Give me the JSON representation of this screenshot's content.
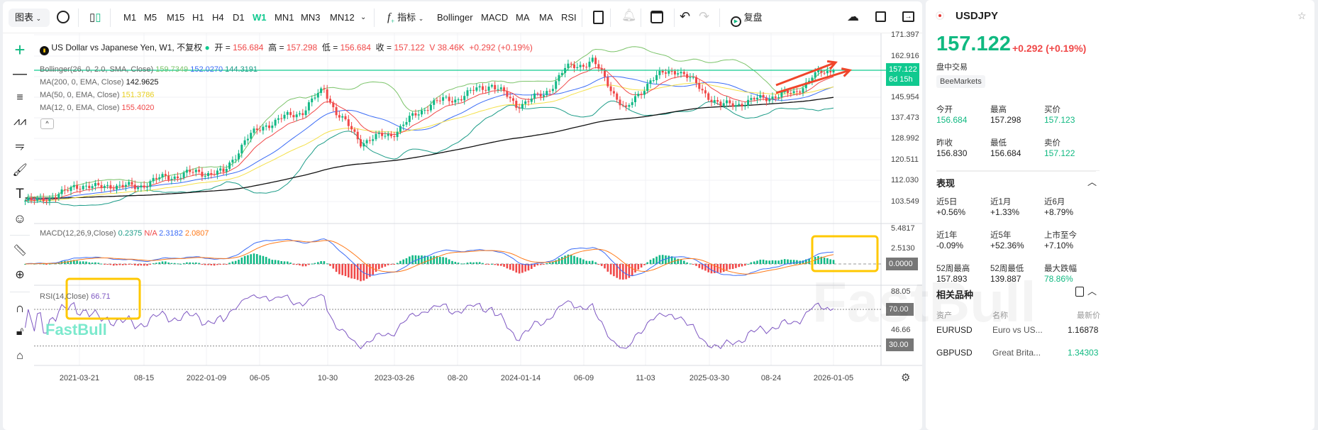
{
  "toolbar": {
    "chart_menu": "图表",
    "timeframes": [
      "M1",
      "M5",
      "M15",
      "H1",
      "H4",
      "D1",
      "W1",
      "MN1",
      "MN3",
      "MN12"
    ],
    "active_timeframe": "W1",
    "indicators_label": "指标",
    "quick_indicators": [
      "Bollinger",
      "MACD",
      "MA",
      "MA",
      "RSI"
    ],
    "replay_label": "复盘"
  },
  "legend": {
    "title": "US Dollar vs Japanese Yen, W1, 不复权",
    "open_label": "开 =",
    "open": "156.684",
    "high_label": "高 =",
    "high": "157.298",
    "low_label": "低 =",
    "low": "156.684",
    "close_label": "收 =",
    "close": "157.122",
    "volume": "V 38.46K",
    "change": "+0.292 (+0.19%)",
    "bollinger": {
      "label": "Bollinger(26, 0, 2.0, SMA, Close)",
      "upper": "159.7349",
      "middle": "152.0270",
      "lower": "144.3191"
    },
    "ma200": {
      "label": "MA(200, 0, EMA, Close)",
      "value": "142.9625"
    },
    "ma50": {
      "label": "MA(50, 0, EMA, Close)",
      "value": "151.3786"
    },
    "ma12": {
      "label": "MA(12, 0, EMA, Close)",
      "value": "155.4020"
    },
    "macd": {
      "label": "MACD(12,26,9,Close)",
      "hist": "0.2375",
      "na": "N/A",
      "macd": "2.3182",
      "signal": "2.0807"
    },
    "rsi": {
      "label": "RSI(14,Close)",
      "value": "66.71"
    }
  },
  "price_axis": [
    "171.397",
    "162.916",
    "145.954",
    "137.473",
    "128.992",
    "120.511",
    "112.030",
    "103.549"
  ],
  "current_price": {
    "value": "157.122",
    "countdown": "6d 15h"
  },
  "macd_axis": [
    "5.4817",
    "2.5130",
    "0.0000"
  ],
  "rsi_axis": [
    "88.05",
    "70.00",
    "46.66",
    "30.00"
  ],
  "date_axis": [
    "2021-03-21",
    "08-15",
    "2022-01-09",
    "06-05",
    "10-30",
    "2023-03-26",
    "08-20",
    "2024-01-14",
    "06-09",
    "11-03",
    "2025-03-30",
    "08-24",
    "2026-01-05"
  ],
  "watermark": "FastBull",
  "colors": {
    "up": "#12b886",
    "down": "#f04848",
    "accent": "#10c98f",
    "bb_upper": "#7cc46a",
    "bb_mid": "#3b6cf6",
    "bb_lower": "#1c9c88",
    "ma200": "#111111",
    "ma50": "#f4e04a",
    "ma12": "#f04848",
    "macd": "#3b6cf6",
    "signal": "#ff7a1a",
    "rsi": "#7e57c2",
    "highlight": "#ffc800"
  },
  "chart_data": {
    "type": "candlestick",
    "symbol": "USDJPY",
    "interval": "W1",
    "close_path": [
      [
        "2020-12-06",
        103.9
      ],
      [
        "2021-01-31",
        104.7
      ],
      [
        "2021-03-28",
        109.6
      ],
      [
        "2021-05-30",
        109.8
      ],
      [
        "2021-08-15",
        109.5
      ],
      [
        "2021-10-24",
        113.5
      ],
      [
        "2022-01-09",
        115.5
      ],
      [
        "2022-03-06",
        115.0
      ],
      [
        "2022-04-24",
        128.5
      ],
      [
        "2022-06-12",
        135.0
      ],
      [
        "2022-09-04",
        140.5
      ],
      [
        "2022-10-23",
        149.5
      ],
      [
        "2022-11-20",
        140.0
      ],
      [
        "2023-01-15",
        128.0
      ],
      [
        "2023-03-26",
        131.0
      ],
      [
        "2023-06-25",
        143.7
      ],
      [
        "2023-08-20",
        145.5
      ],
      [
        "2023-11-12",
        151.5
      ],
      [
        "2024-01-07",
        143.0
      ],
      [
        "2024-03-10",
        147.0
      ],
      [
        "2024-04-28",
        157.5
      ],
      [
        "2024-06-30",
        161.0
      ],
      [
        "2024-09-15",
        140.5
      ],
      [
        "2024-11-10",
        153.5
      ],
      [
        "2025-01-12",
        157.6
      ],
      [
        "2025-04-20",
        142.5
      ],
      [
        "2025-06-29",
        144.5
      ],
      [
        "2025-08-24",
        147.0
      ],
      [
        "2025-10-05",
        147.5
      ],
      [
        "2025-11-16",
        154.6
      ],
      [
        "2026-01-05",
        157.12
      ]
    ],
    "last_bar": {
      "open": 156.684,
      "high": 157.298,
      "low": 156.684,
      "close": 157.122
    },
    "y_range": [
      100.5,
      174.0
    ]
  },
  "side": {
    "symbol": "USDJPY",
    "price": "157.122",
    "change": "+0.292",
    "change_pct": "(+0.19%)",
    "session": "盘中交易",
    "broker": "BeeMarkets",
    "quote": [
      {
        "label": "今开",
        "value": "156.684",
        "tone": "g"
      },
      {
        "label": "最高",
        "value": "157.298",
        "tone": ""
      },
      {
        "label": "买价",
        "value": "157.123",
        "tone": "g"
      },
      {
        "label": "昨收",
        "value": "156.830",
        "tone": ""
      },
      {
        "label": "最低",
        "value": "156.684",
        "tone": ""
      },
      {
        "label": "卖价",
        "value": "157.122",
        "tone": "g"
      }
    ],
    "perf_title": "表现",
    "perf": [
      {
        "label": "近5日",
        "value": "+0.56%",
        "tone": ""
      },
      {
        "label": "近1月",
        "value": "+1.33%",
        "tone": ""
      },
      {
        "label": "近6月",
        "value": "+8.79%",
        "tone": ""
      },
      {
        "label": "近1年",
        "value": "-0.09%",
        "tone": ""
      },
      {
        "label": "近5年",
        "value": "+52.36%",
        "tone": ""
      },
      {
        "label": "上市至今",
        "value": "+7.10%",
        "tone": ""
      },
      {
        "label": "52周最高",
        "value": "157.893",
        "tone": ""
      },
      {
        "label": "52周最低",
        "value": "139.887",
        "tone": ""
      },
      {
        "label": "最大跌幅",
        "value": "78.86%",
        "tone": "g"
      }
    ],
    "related_title": "相关品种",
    "related_headers": [
      "资产",
      "名称",
      "最新价"
    ],
    "related": [
      {
        "asset": "EURUSD",
        "name": "Euro vs US...",
        "price": "1.16878",
        "tone": ""
      },
      {
        "asset": "GBPUSD",
        "name": "Great Brita...",
        "price": "1.34303",
        "tone": "g"
      }
    ]
  }
}
